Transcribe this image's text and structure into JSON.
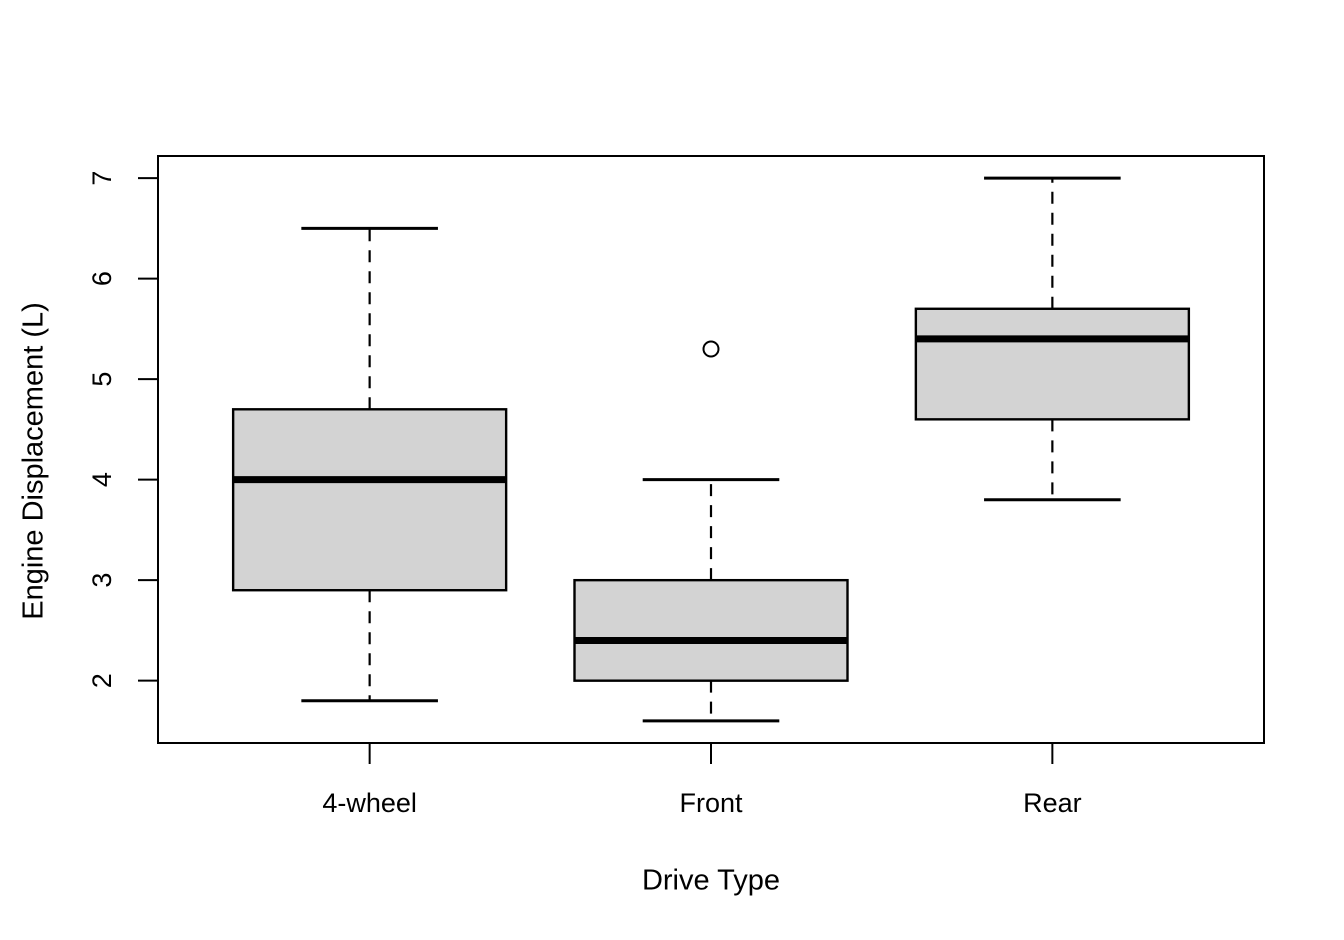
{
  "chart_data": {
    "type": "boxplot",
    "title": "",
    "xlabel": "Drive Type",
    "ylabel": "Engine Displacement (L)",
    "categories": [
      "4-wheel",
      "Front",
      "Rear"
    ],
    "yticks": [
      2,
      3,
      4,
      5,
      6,
      7
    ],
    "ylim": [
      1.38,
      7.22
    ],
    "grid": false,
    "legend": null,
    "series": [
      {
        "category": "4-wheel",
        "whisker_low": 1.8,
        "q1": 2.9,
        "median": 4.0,
        "q3": 4.7,
        "whisker_high": 6.5,
        "outliers": []
      },
      {
        "category": "Front",
        "whisker_low": 1.6,
        "q1": 2.0,
        "median": 2.4,
        "q3": 3.0,
        "whisker_high": 4.0,
        "outliers": [
          5.3
        ]
      },
      {
        "category": "Rear",
        "whisker_low": 3.8,
        "q1": 4.6,
        "median": 5.4,
        "q3": 5.7,
        "whisker_high": 7.0,
        "outliers": []
      }
    ],
    "colors": {
      "box_fill": "#d3d3d3",
      "line": "#000000",
      "background": "#ffffff"
    }
  }
}
